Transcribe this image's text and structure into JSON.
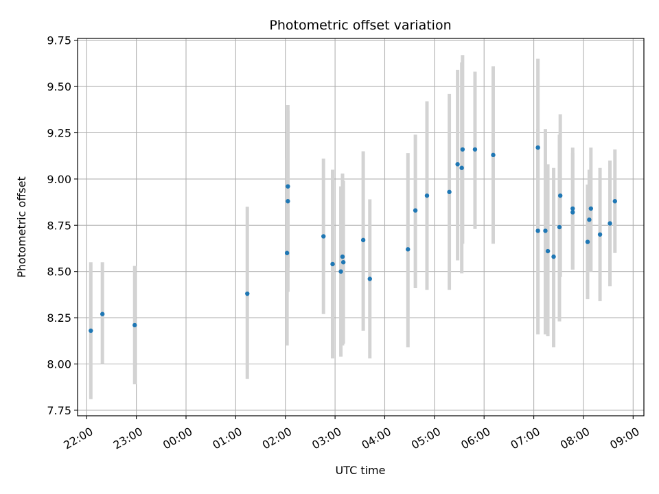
{
  "chart_data": {
    "type": "scatter",
    "title": "Photometric offset variation",
    "xlabel": "UTC time",
    "ylabel": "Photometric offset",
    "xlim": [
      "21:49",
      "09:13"
    ],
    "ylim": [
      7.72,
      9.76
    ],
    "x_ticks": [
      "22:00",
      "23:00",
      "00:00",
      "01:00",
      "02:00",
      "03:00",
      "04:00",
      "05:00",
      "06:00",
      "07:00",
      "08:00",
      "09:00"
    ],
    "y_ticks": [
      "7.75",
      "8.00",
      "8.25",
      "8.50",
      "8.75",
      "9.00",
      "9.25",
      "9.50",
      "9.75"
    ],
    "grid": true,
    "marker_color": "#1f77b4",
    "errorbar_color": "#d3d3d3",
    "points": [
      {
        "t": "22:05",
        "y": 8.18,
        "lo": 7.81,
        "hi": 8.55
      },
      {
        "t": "22:19",
        "y": 8.27,
        "lo": 8.0,
        "hi": 8.55
      },
      {
        "t": "22:58",
        "y": 8.21,
        "lo": 7.89,
        "hi": 8.53
      },
      {
        "t": "01:14",
        "y": 8.38,
        "lo": 7.92,
        "hi": 8.85
      },
      {
        "t": "02:02",
        "y": 8.6,
        "lo": 8.1,
        "hi": 9.11
      },
      {
        "t": "02:03",
        "y": 8.88,
        "lo": 8.39,
        "hi": 9.37
      },
      {
        "t": "02:03",
        "y": 8.96,
        "lo": 8.52,
        "hi": 9.4
      },
      {
        "t": "02:46",
        "y": 8.69,
        "lo": 8.27,
        "hi": 9.11
      },
      {
        "t": "02:57",
        "y": 8.54,
        "lo": 8.03,
        "hi": 9.05
      },
      {
        "t": "03:07",
        "y": 8.5,
        "lo": 8.04,
        "hi": 8.96
      },
      {
        "t": "03:09",
        "y": 8.58,
        "lo": 8.1,
        "hi": 9.03
      },
      {
        "t": "03:10",
        "y": 8.55,
        "lo": 8.11,
        "hi": 8.99
      },
      {
        "t": "03:34",
        "y": 8.67,
        "lo": 8.18,
        "hi": 9.15
      },
      {
        "t": "03:42",
        "y": 8.46,
        "lo": 8.03,
        "hi": 8.89
      },
      {
        "t": "04:28",
        "y": 8.62,
        "lo": 8.09,
        "hi": 9.14
      },
      {
        "t": "04:37",
        "y": 8.83,
        "lo": 8.41,
        "hi": 9.24
      },
      {
        "t": "04:51",
        "y": 8.91,
        "lo": 8.4,
        "hi": 9.42
      },
      {
        "t": "05:18",
        "y": 8.93,
        "lo": 8.4,
        "hi": 9.46
      },
      {
        "t": "05:28",
        "y": 9.08,
        "lo": 8.56,
        "hi": 9.59
      },
      {
        "t": "05:33",
        "y": 9.06,
        "lo": 8.49,
        "hi": 9.63
      },
      {
        "t": "05:34",
        "y": 9.16,
        "lo": 8.65,
        "hi": 9.67
      },
      {
        "t": "05:49",
        "y": 9.16,
        "lo": 8.73,
        "hi": 9.58
      },
      {
        "t": "06:11",
        "y": 9.13,
        "lo": 8.65,
        "hi": 9.61
      },
      {
        "t": "07:05",
        "y": 9.17,
        "lo": 8.69,
        "hi": 9.65
      },
      {
        "t": "07:05",
        "y": 8.72,
        "lo": 8.16,
        "hi": 9.27
      },
      {
        "t": "07:14",
        "y": 8.72,
        "lo": 8.16,
        "hi": 9.27
      },
      {
        "t": "07:17",
        "y": 8.61,
        "lo": 8.15,
        "hi": 9.08
      },
      {
        "t": "07:24",
        "y": 8.58,
        "lo": 8.09,
        "hi": 9.06
      },
      {
        "t": "07:31",
        "y": 8.74,
        "lo": 8.23,
        "hi": 9.24
      },
      {
        "t": "07:32",
        "y": 8.91,
        "lo": 8.47,
        "hi": 9.35
      },
      {
        "t": "07:47",
        "y": 8.84,
        "lo": 8.51,
        "hi": 9.17
      },
      {
        "t": "07:47",
        "y": 8.82,
        "lo": 8.51,
        "hi": 9.14
      },
      {
        "t": "08:05",
        "y": 8.66,
        "lo": 8.35,
        "hi": 8.97
      },
      {
        "t": "08:07",
        "y": 8.78,
        "lo": 8.51,
        "hi": 9.05
      },
      {
        "t": "08:09",
        "y": 8.84,
        "lo": 8.5,
        "hi": 9.17
      },
      {
        "t": "08:20",
        "y": 8.7,
        "lo": 8.34,
        "hi": 9.06
      },
      {
        "t": "08:32",
        "y": 8.76,
        "lo": 8.42,
        "hi": 9.1
      },
      {
        "t": "08:38",
        "y": 8.88,
        "lo": 8.6,
        "hi": 9.16
      }
    ]
  }
}
